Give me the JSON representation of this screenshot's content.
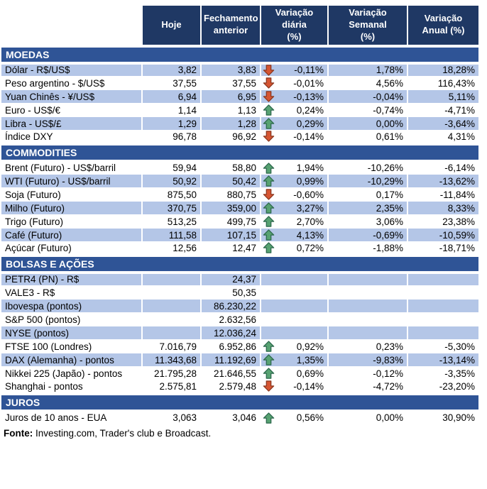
{
  "header": {
    "columns": [
      "",
      "Hoje",
      "Fechamento\nanterior",
      "Variação diária\n(%)",
      "Variação Semanal\n(%)",
      "Variação\nAnual (%)"
    ]
  },
  "chart_data": {
    "type": "table",
    "columns": [
      "",
      "Hoje",
      "Fechamento\nanterior",
      "Variação diária\n(%)",
      "Variação Semanal\n(%)",
      "Variação\nAnual (%)"
    ],
    "sections": [
      {
        "title": "MOEDAS",
        "rows": [
          {
            "label": "Dólar - R$/US$",
            "hoje": "3,82",
            "fechamento": "3,83",
            "arrow": "down",
            "diaria": "-0,11%",
            "semanal": "1,78%",
            "anual": "18,28%",
            "shaded": true
          },
          {
            "label": "Peso argentino - $/US$",
            "hoje": "37,55",
            "fechamento": "37,55",
            "arrow": "down",
            "diaria": "-0,01%",
            "semanal": "4,56%",
            "anual": "116,43%",
            "shaded": false
          },
          {
            "label": "Yuan Chinês - ¥/US$",
            "hoje": "6,94",
            "fechamento": "6,95",
            "arrow": "down",
            "diaria": "-0,13%",
            "semanal": "-0,04%",
            "anual": "5,11%",
            "shaded": true
          },
          {
            "label": "Euro - US$/€",
            "hoje": "1,14",
            "fechamento": "1,13",
            "arrow": "up",
            "diaria": "0,24%",
            "semanal": "-0,74%",
            "anual": "-4,71%",
            "shaded": false
          },
          {
            "label": "Libra - US$/£",
            "hoje": "1,29",
            "fechamento": "1,28",
            "arrow": "up",
            "diaria": "0,29%",
            "semanal": "0,00%",
            "anual": "-3,64%",
            "shaded": true
          },
          {
            "label": "Índice DXY",
            "hoje": "96,78",
            "fechamento": "96,92",
            "arrow": "down",
            "diaria": "-0,14%",
            "semanal": "0,61%",
            "anual": "4,31%",
            "shaded": false
          }
        ]
      },
      {
        "title": "COMMODITIES",
        "rows": [
          {
            "label": "Brent (Futuro) - US$/barril",
            "hoje": "59,94",
            "fechamento": "58,80",
            "arrow": "up",
            "diaria": "1,94%",
            "semanal": "-10,26%",
            "anual": "-6,14%",
            "shaded": false
          },
          {
            "label": "WTI (Futuro) - US$/barril",
            "hoje": "50,92",
            "fechamento": "50,42",
            "arrow": "up",
            "diaria": "0,99%",
            "semanal": "-10,29%",
            "anual": "-13,62%",
            "shaded": true
          },
          {
            "label": "Soja (Futuro)",
            "hoje": "875,50",
            "fechamento": "880,75",
            "arrow": "down",
            "diaria": "-0,60%",
            "semanal": "0,17%",
            "anual": "-11,84%",
            "shaded": false
          },
          {
            "label": "Milho (Futuro)",
            "hoje": "370,75",
            "fechamento": "359,00",
            "arrow": "up",
            "diaria": "3,27%",
            "semanal": "2,35%",
            "anual": "8,33%",
            "shaded": true
          },
          {
            "label": "Trigo (Futuro)",
            "hoje": "513,25",
            "fechamento": "499,75",
            "arrow": "up",
            "diaria": "2,70%",
            "semanal": "3,06%",
            "anual": "23,38%",
            "shaded": false
          },
          {
            "label": "Café (Futuro)",
            "hoje": "111,58",
            "fechamento": "107,15",
            "arrow": "up",
            "diaria": "4,13%",
            "semanal": "-0,69%",
            "anual": "-10,59%",
            "shaded": true
          },
          {
            "label": "Açúcar (Futuro)",
            "hoje": "12,56",
            "fechamento": "12,47",
            "arrow": "up",
            "diaria": "0,72%",
            "semanal": "-1,88%",
            "anual": "-18,71%",
            "shaded": false
          }
        ]
      },
      {
        "title": "BOLSAS E AÇÕES",
        "rows": [
          {
            "label": "PETR4 (PN) - R$",
            "hoje": "",
            "fechamento": "24,37",
            "arrow": null,
            "diaria": "",
            "semanal": "",
            "anual": "",
            "shaded": true
          },
          {
            "label": "VALE3 - R$",
            "hoje": "",
            "fechamento": "50,35",
            "arrow": null,
            "diaria": "",
            "semanal": "",
            "anual": "",
            "shaded": false
          },
          {
            "label": "Ibovespa (pontos)",
            "hoje": "",
            "fechamento": "86.230,22",
            "arrow": null,
            "diaria": "",
            "semanal": "",
            "anual": "",
            "shaded": true
          },
          {
            "label": "S&P 500 (pontos)",
            "hoje": "",
            "fechamento": "2.632,56",
            "arrow": null,
            "diaria": "",
            "semanal": "",
            "anual": "",
            "shaded": false
          },
          {
            "label": "NYSE (pontos)",
            "hoje": "",
            "fechamento": "12.036,24",
            "arrow": null,
            "diaria": "",
            "semanal": "",
            "anual": "",
            "shaded": true
          },
          {
            "label": "FTSE 100 (Londres)",
            "hoje": "7.016,79",
            "fechamento": "6.952,86",
            "arrow": "up",
            "diaria": "0,92%",
            "semanal": "0,23%",
            "anual": "-5,30%",
            "shaded": false
          },
          {
            "label": "DAX (Alemanha) - pontos",
            "hoje": "11.343,68",
            "fechamento": "11.192,69",
            "arrow": "up",
            "diaria": "1,35%",
            "semanal": "-9,83%",
            "anual": "-13,14%",
            "shaded": true
          },
          {
            "label": "Nikkei 225 (Japão) - pontos",
            "hoje": "21.795,28",
            "fechamento": "21.646,55",
            "arrow": "up",
            "diaria": "0,69%",
            "semanal": "-0,12%",
            "anual": "-3,35%",
            "shaded": false
          },
          {
            "label": "Shanghai - pontos",
            "hoje": "2.575,81",
            "fechamento": "2.579,48",
            "arrow": "down",
            "diaria": "-0,14%",
            "semanal": "-4,72%",
            "anual": "-23,20%",
            "shaded": false
          }
        ]
      },
      {
        "title": "JUROS",
        "rows": [
          {
            "label": "Juros de 10 anos - EUA",
            "hoje": "3,063",
            "fechamento": "3,046",
            "arrow": "up",
            "diaria": "0,56%",
            "semanal": "0,00%",
            "anual": "30,90%",
            "shaded": false
          }
        ]
      }
    ]
  },
  "footer": {
    "label": "Fonte:",
    "text": " Investing.com, Trader's club e Broadcast."
  },
  "colors": {
    "header_bg": "#1F3864",
    "section_bg": "#2F5496",
    "row_shade": "#B4C6E7",
    "arrow_up": "#57A271",
    "arrow_down": "#D65532"
  }
}
